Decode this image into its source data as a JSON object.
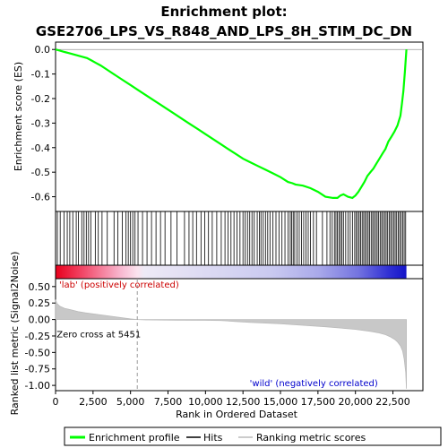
{
  "chart_data": {
    "type": "line",
    "title": "Enrichment plot: GSE2706_LPS_VS_R848_AND_LPS_8H_STIM_DC_DN",
    "xlabel": "Rank in Ordered Dataset",
    "ylabel_top": "Enrichment score (ES)",
    "ylabel_bottom": "Ranked list metric (Signal2Noise)",
    "x_ticks": [
      0,
      2500,
      5000,
      7500,
      10000,
      12500,
      15000,
      17500,
      20000,
      22500
    ],
    "x_tick_labels": [
      "0",
      "2,500",
      "5,000",
      "7,500",
      "10,000",
      "12,500",
      "15,000",
      "17,500",
      "20,000",
      "22,500"
    ],
    "xlim": [
      0,
      24500
    ],
    "es_ylim": [
      -0.66,
      0.03
    ],
    "es_ticks": [
      0.0,
      -0.1,
      -0.2,
      -0.3,
      -0.4,
      -0.5,
      -0.6
    ],
    "es_tick_labels": [
      "0.0",
      "-0.1",
      "-0.2",
      "-0.3",
      "-0.4",
      "-0.5",
      "-0.6"
    ],
    "metric_ylim": [
      -1.08,
      0.62
    ],
    "metric_ticks": [
      0.5,
      0.25,
      0.0,
      -0.25,
      -0.5,
      -0.75,
      -1.0
    ],
    "metric_tick_labels": [
      "0.50",
      "0.25",
      "0.00",
      "-0.25",
      "-0.50",
      "-0.75",
      "-1.00"
    ],
    "n_genes": 23400,
    "zero_cross": 5451,
    "zero_cross_label": "Zero cross at 5451",
    "pos_label": "'lab' (positively correlated)",
    "neg_label": "'wild' (negatively correlated)",
    "series": [
      {
        "name": "Enrichment profile",
        "color": "#00ff00",
        "x": [
          0,
          300,
          600,
          900,
          1200,
          1500,
          1800,
          2100,
          2400,
          2700,
          3000,
          3500,
          4000,
          4500,
          5000,
          5500,
          6000,
          6500,
          7000,
          7500,
          8000,
          8500,
          9000,
          9500,
          10000,
          10500,
          11000,
          11500,
          12000,
          12500,
          13000,
          13500,
          14000,
          14500,
          15000,
          15500,
          15800,
          16000,
          16500,
          17000,
          17500,
          18000,
          18500,
          18800,
          19000,
          19200,
          19500,
          19800,
          20000,
          20200,
          20400,
          20600,
          20800,
          21000,
          21200,
          21400,
          21600,
          21800,
          22000,
          22200,
          22400,
          22600,
          22800,
          23000,
          23100,
          23200,
          23300,
          23400
        ],
        "y": [
          0.0,
          -0.005,
          -0.01,
          -0.015,
          -0.02,
          -0.025,
          -0.03,
          -0.035,
          -0.045,
          -0.055,
          -0.065,
          -0.085,
          -0.105,
          -0.125,
          -0.145,
          -0.165,
          -0.185,
          -0.205,
          -0.225,
          -0.245,
          -0.265,
          -0.285,
          -0.305,
          -0.325,
          -0.345,
          -0.365,
          -0.385,
          -0.405,
          -0.425,
          -0.445,
          -0.46,
          -0.475,
          -0.49,
          -0.505,
          -0.52,
          -0.54,
          -0.545,
          -0.55,
          -0.555,
          -0.565,
          -0.58,
          -0.6,
          -0.605,
          -0.605,
          -0.595,
          -0.59,
          -0.6,
          -0.605,
          -0.595,
          -0.58,
          -0.56,
          -0.54,
          -0.515,
          -0.5,
          -0.485,
          -0.465,
          -0.445,
          -0.425,
          -0.405,
          -0.375,
          -0.355,
          -0.335,
          -0.31,
          -0.27,
          -0.22,
          -0.17,
          -0.09,
          0.0
        ]
      }
    ],
    "hits": [
      120,
      310,
      560,
      780,
      950,
      1150,
      1380,
      1520,
      1750,
      1900,
      2050,
      2200,
      2350,
      2650,
      2850,
      3100,
      3450,
      3900,
      4150,
      4450,
      4700,
      4850,
      5000,
      5150,
      5300,
      5500,
      5800,
      6100,
      6400,
      6700,
      7000,
      7300,
      7700,
      8100,
      8600,
      8900,
      9150,
      9400,
      9700,
      9950,
      10200,
      10450,
      10750,
      11050,
      11300,
      11500,
      11700,
      11900,
      12100,
      12300,
      12500,
      12650,
      12800,
      12950,
      13100,
      13250,
      13450,
      13600,
      13700,
      13850,
      14000,
      14150,
      14300,
      14500,
      14700,
      14900,
      15100,
      15300,
      15500,
      15650,
      15750,
      15850,
      15950,
      16100,
      16250,
      16400,
      16550,
      16700,
      16850,
      17000,
      17200,
      17400,
      17800,
      18100,
      18300,
      18450,
      18600,
      18700,
      18800,
      18900,
      19000,
      19100,
      19200,
      19350,
      19500,
      19650,
      19800,
      19950,
      20050,
      20150,
      20250,
      20350,
      20450,
      20550,
      20650,
      20750,
      20850,
      20950,
      21050,
      21150,
      21250,
      21350,
      21450,
      21550,
      21650,
      21750,
      21850,
      21950,
      22050,
      22150,
      22250,
      22350,
      22450,
      22550,
      22650,
      22750,
      22850,
      22950,
      23050,
      23150,
      23250,
      23350
    ],
    "metric_curve": {
      "x": [
        0,
        100,
        300,
        600,
        1000,
        1500,
        2000,
        2500,
        3000,
        3500,
        4000,
        4500,
        5000,
        5451,
        6000,
        8000,
        10000,
        11000,
        12000,
        13000,
        14000,
        15000,
        16000,
        17000,
        18000,
        19000,
        20000,
        20500,
        21000,
        21500,
        22000,
        22300,
        22600,
        22800,
        23000,
        23150,
        23250,
        23350,
        23400
      ],
      "y": [
        0.3,
        0.24,
        0.2,
        0.17,
        0.15,
        0.12,
        0.1,
        0.085,
        0.07,
        0.055,
        0.04,
        0.025,
        0.01,
        0.0,
        -0.005,
        -0.01,
        -0.012,
        -0.015,
        -0.03,
        -0.045,
        -0.055,
        -0.065,
        -0.08,
        -0.095,
        -0.11,
        -0.13,
        -0.15,
        -0.165,
        -0.18,
        -0.2,
        -0.23,
        -0.26,
        -0.3,
        -0.34,
        -0.4,
        -0.48,
        -0.6,
        -0.8,
        -1.05
      ]
    },
    "legend": [
      {
        "name": "Enrichment profile",
        "color": "#00ff00"
      },
      {
        "name": "Hits",
        "color": "#000000"
      },
      {
        "name": "Ranking metric scores",
        "color": "#bbbbbb"
      }
    ]
  }
}
